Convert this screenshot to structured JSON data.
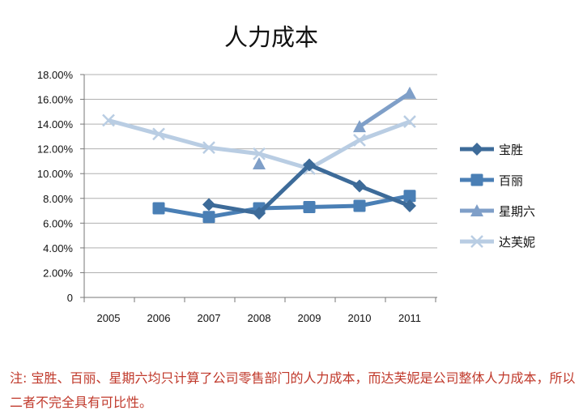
{
  "chart_data": {
    "type": "line",
    "title": "人力成本",
    "xlabel": "",
    "ylabel": "",
    "categories": [
      "2005",
      "2006",
      "2007",
      "2008",
      "2009",
      "2010",
      "2011"
    ],
    "ylim": [
      0,
      18
    ],
    "ytick_labels": [
      "0",
      "2.00%",
      "4.00%",
      "6.00%",
      "8.00%",
      "10.00%",
      "12.00%",
      "14.00%",
      "16.00%",
      "18.00%"
    ],
    "grid": true,
    "legend_position": "right",
    "series": [
      {
        "name": "宝胜",
        "marker": "diamond",
        "color": "#3d6b99",
        "values": [
          null,
          null,
          7.5,
          6.8,
          10.7,
          9.0,
          7.4
        ]
      },
      {
        "name": "百丽",
        "marker": "square",
        "color": "#4a7fb5",
        "values": [
          null,
          7.2,
          6.5,
          7.2,
          7.3,
          7.4,
          8.2
        ]
      },
      {
        "name": "星期六",
        "marker": "triangle",
        "color": "#7f9fc8",
        "values": [
          null,
          null,
          null,
          10.8,
          null,
          13.8,
          16.5
        ]
      },
      {
        "name": "达芙妮",
        "marker": "x",
        "color": "#b9cde3",
        "values": [
          14.3,
          13.2,
          12.1,
          11.6,
          10.4,
          12.7,
          14.2
        ]
      }
    ]
  },
  "note": "注: 宝胜、百丽、星期六均只计算了公司零售部门的人力成本，而达芙妮是公司整体人力成本，所以二者不完全具有可比性。"
}
